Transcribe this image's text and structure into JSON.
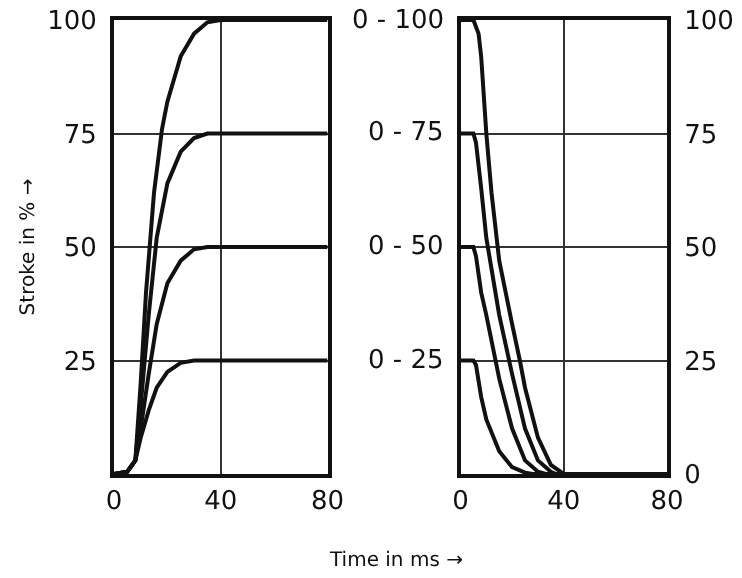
{
  "chart_data": [
    {
      "type": "line",
      "ylabel": "Stroke in % →",
      "xlabel": "Time in ms →",
      "xlim": [
        0,
        80
      ],
      "xticks": [
        0,
        40,
        80
      ],
      "ylim": [
        0,
        100
      ],
      "yticks": [
        {
          "value": 0,
          "label": null
        },
        25,
        50,
        75,
        100
      ],
      "grid": true,
      "marker": "none",
      "series": [
        {
          "color": "#111111",
          "x": [
            0,
            5,
            8,
            10,
            12,
            15,
            18,
            20,
            23,
            25,
            30,
            35,
            40,
            80
          ],
          "values": [
            0,
            0.5,
            3,
            20,
            40,
            62,
            76,
            82,
            88,
            92,
            97,
            99.5,
            100,
            100
          ]
        },
        {
          "color": "#111111",
          "x": [
            0,
            5,
            8,
            10,
            13,
            16,
            20,
            25,
            30,
            35,
            80
          ],
          "values": [
            0,
            0.5,
            3,
            15,
            35,
            52,
            64,
            71,
            74,
            75,
            75
          ]
        },
        {
          "color": "#111111",
          "x": [
            0,
            5,
            8,
            10,
            13,
            16,
            20,
            25,
            30,
            35,
            80
          ],
          "values": [
            0,
            0.5,
            3,
            10,
            22,
            33,
            42,
            47,
            49.5,
            50,
            50
          ]
        },
        {
          "color": "#111111",
          "x": [
            0,
            5,
            8,
            10,
            13,
            16,
            20,
            25,
            30,
            80
          ],
          "values": [
            0,
            0.5,
            3,
            8,
            14,
            19,
            22.5,
            24.5,
            25,
            25
          ]
        }
      ]
    },
    {
      "type": "line",
      "xlim": [
        0,
        80
      ],
      "xticks": [
        0,
        40,
        80
      ],
      "ylim": [
        0,
        100
      ],
      "yticks": [
        0,
        25,
        50,
        75,
        100
      ],
      "grid": true,
      "marker": "none",
      "annotations": [
        "0 - 100",
        "0 - 75",
        "0 - 50",
        "0 - 25"
      ],
      "series": [
        {
          "color": "#111111",
          "x": [
            0,
            5,
            7,
            8,
            10,
            12,
            15,
            20,
            23,
            25,
            30,
            35,
            40,
            80
          ],
          "values": [
            100,
            100,
            97,
            92,
            75,
            62,
            47,
            33,
            25,
            19,
            8,
            2,
            0,
            0
          ]
        },
        {
          "color": "#111111",
          "x": [
            0,
            5,
            6,
            8,
            10,
            15,
            20,
            25,
            30,
            35,
            37,
            80
          ],
          "values": [
            75,
            75,
            73,
            63,
            52,
            35,
            22,
            10,
            3,
            0.5,
            0,
            0
          ]
        },
        {
          "color": "#111111",
          "x": [
            0,
            5,
            6,
            8,
            10,
            15,
            20,
            25,
            30,
            33,
            80
          ],
          "values": [
            50,
            50,
            48,
            40,
            35,
            21,
            10,
            3,
            0.5,
            0,
            0
          ]
        },
        {
          "color": "#111111",
          "x": [
            0,
            5,
            6,
            8,
            10,
            15,
            20,
            25,
            28,
            80
          ],
          "values": [
            25,
            25,
            24,
            17,
            12,
            5,
            1.5,
            0.3,
            0,
            0
          ]
        }
      ]
    }
  ]
}
